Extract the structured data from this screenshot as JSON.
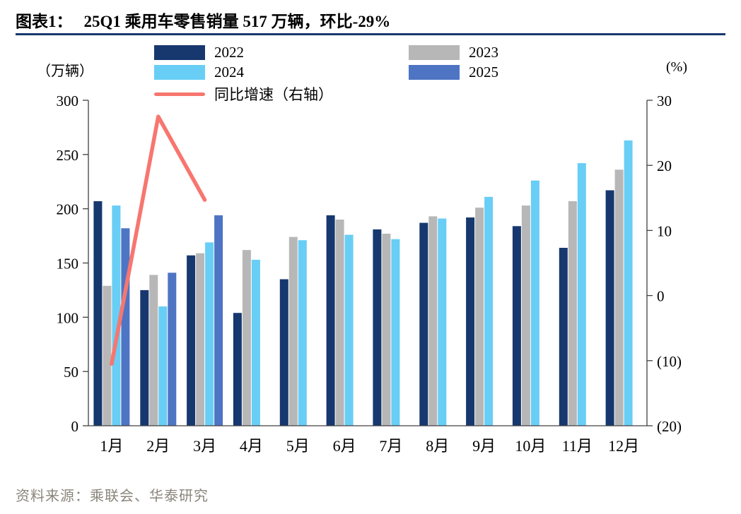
{
  "header": {
    "figure_label": "图表1：",
    "title": "25Q1 乘用车零售销量 517 万辆，环比-29%"
  },
  "footer": {
    "source": "资料来源：乘联会、华泰研究"
  },
  "colors": {
    "divider": "#17386f",
    "axis": "#404040"
  },
  "chart_data": {
    "type": "bar",
    "title": "25Q1 乘用车零售销量 517 万辆，环比-29%",
    "categories": [
      "1月",
      "2月",
      "3月",
      "4月",
      "5月",
      "6月",
      "7月",
      "8月",
      "9月",
      "10月",
      "11月",
      "12月"
    ],
    "series": [
      {
        "name": "2022",
        "color": "#17386f",
        "values": [
          207,
          125,
          157,
          104,
          135,
          194,
          181,
          187,
          192,
          184,
          164,
          217
        ]
      },
      {
        "name": "2023",
        "color": "#b7b7b7",
        "values": [
          129,
          139,
          159,
          162,
          174,
          190,
          177,
          193,
          201,
          203,
          207,
          236
        ]
      },
      {
        "name": "2024",
        "color": "#68cef5",
        "values": [
          203,
          110,
          169,
          153,
          171,
          176,
          172,
          191,
          211,
          226,
          242,
          263
        ]
      },
      {
        "name": "2025",
        "color": "#4e74c4",
        "values": [
          182,
          141,
          194,
          null,
          null,
          null,
          null,
          null,
          null,
          null,
          null,
          null
        ]
      }
    ],
    "line_series": {
      "name": "同比增速（右轴）",
      "axis": "right",
      "color": "#f7766f",
      "values": [
        -10.5,
        27.5,
        14.7,
        null,
        null,
        null,
        null,
        null,
        null,
        null,
        null,
        null
      ]
    },
    "left_axis": {
      "label": "（万辆）",
      "min": 0,
      "max": 300,
      "ticks": [
        0,
        50,
        100,
        150,
        200,
        250,
        300
      ]
    },
    "right_axis": {
      "label": "(%)",
      "min": -20,
      "max": 30,
      "ticks": [
        -20,
        -10,
        0,
        10,
        20,
        30
      ],
      "tick_labels": [
        "(20)",
        "(10)",
        "0",
        "10",
        "20",
        "30"
      ]
    },
    "legend_position": "top",
    "grid": false
  }
}
